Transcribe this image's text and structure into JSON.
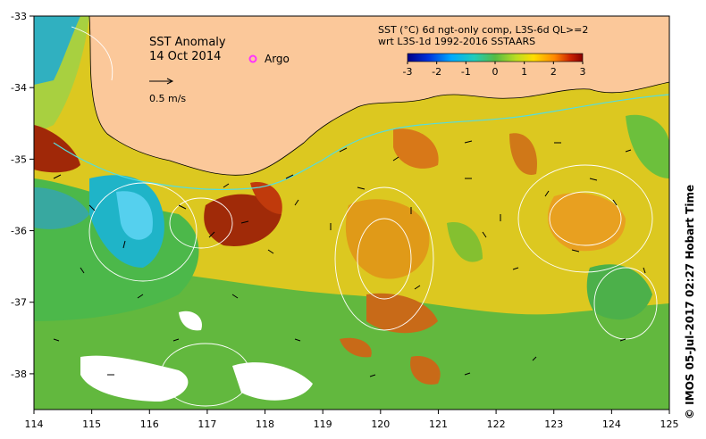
{
  "map": {
    "title": "SST Anomaly",
    "date": "14 Oct 2014",
    "argo_label": "Argo",
    "scale_arrow_label": "0.5 m/s",
    "product_line1": "SST (°C) 6d ngt-only comp, L3S-6d QL>=2",
    "product_line2": "wrt L3S-1d 1992-2016 SSTAARS",
    "credit": "© IMOS 05-Jul-2017 02:27 Hobart Time",
    "lon_range": [
      114,
      125
    ],
    "lat_range": [
      -38.5,
      -33
    ],
    "lon_ticks": [
      "114",
      "115",
      "116",
      "117",
      "118",
      "119",
      "120",
      "121",
      "122",
      "123",
      "124",
      "125"
    ],
    "lat_ticks": [
      "-33",
      "-34",
      "-35",
      "-36",
      "-37",
      "-38"
    ],
    "colorbar": {
      "ticks": [
        "-3",
        "-2",
        "-1",
        "0",
        "1",
        "2",
        "3"
      ],
      "range": [
        -3,
        3
      ]
    },
    "colors": {
      "land": "#fbc89a",
      "no_data": "#ffffff",
      "contour": "#ffffff",
      "shelf_break": "#55dddd",
      "argo_marker": "#ff33ff",
      "cold_extreme": "#000088",
      "warm_extreme": "#880000"
    }
  }
}
